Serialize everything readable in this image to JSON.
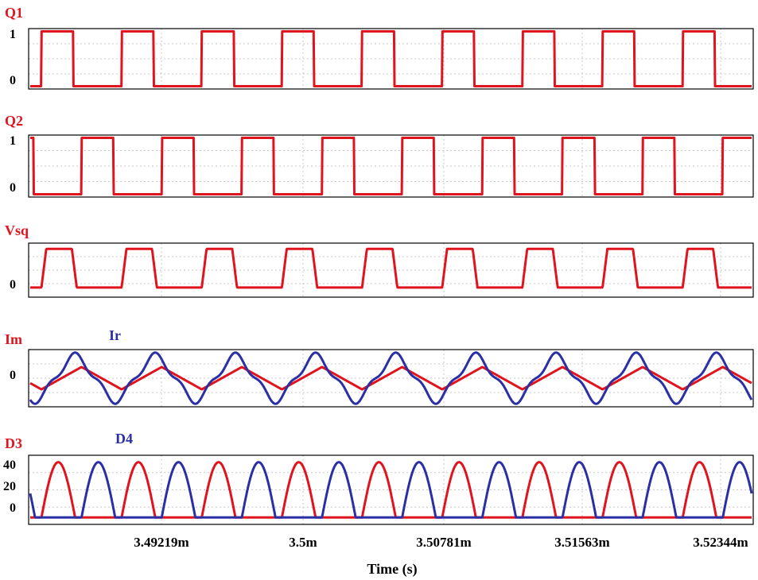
{
  "colors": {
    "red": "#e0141e",
    "blue": "#2b2fa6",
    "grid": "#c8c8c8",
    "frame": "#000000"
  },
  "x_axis": {
    "ticks": [
      "3.49219m",
      "3.5m",
      "3.50781m",
      "3.51563m",
      "3.52344m"
    ],
    "label": "Time (s)"
  },
  "chart_data": [
    {
      "type": "line",
      "series": [
        {
          "name": "Q1",
          "color": "#e0141e",
          "shape": "pulse",
          "periods": 9,
          "duty": 0.4,
          "phase": 0.14,
          "low": 0,
          "high": 1
        }
      ],
      "y_ticks": [
        "1",
        "0"
      ],
      "ylim": [
        -0.05,
        1.05
      ],
      "grid": true
    },
    {
      "type": "line",
      "series": [
        {
          "name": "Q2",
          "color": "#e0141e",
          "shape": "pulse",
          "periods": 9,
          "duty": 0.4,
          "phase": 0.64,
          "low": 0,
          "high": 1
        }
      ],
      "y_ticks": [
        "1",
        "0"
      ],
      "ylim": [
        -0.05,
        1.05
      ],
      "grid": true
    },
    {
      "type": "line",
      "series": [
        {
          "name": "Vsq",
          "color": "#e0141e",
          "shape": "trap",
          "periods": 9,
          "phase": 0.14,
          "low": 0,
          "high": 1
        }
      ],
      "y_ticks": [
        "0"
      ],
      "ylim": [
        -0.25,
        1.15
      ],
      "grid": true
    },
    {
      "type": "line",
      "series": [
        {
          "name": "Im",
          "color": "#e0141e",
          "shape": "triangle",
          "periods": 9,
          "phase": 0.14,
          "amp": 0.45
        },
        {
          "name": "Ir",
          "color": "#2b2fa6",
          "shape": "resonant",
          "periods": 9,
          "phase": 0.14,
          "amp": 1
        }
      ],
      "y_ticks": [
        "0"
      ],
      "ylim": [
        -1.15,
        1.15
      ],
      "grid": true
    },
    {
      "type": "line",
      "series": [
        {
          "name": "D3",
          "color": "#e0141e",
          "shape": "arcs",
          "periods": 9,
          "phase": 0.14,
          "peak": 40
        },
        {
          "name": "D4",
          "color": "#2b2fa6",
          "shape": "arcs",
          "periods": 9,
          "phase": 0.64,
          "peak": 40
        }
      ],
      "y_ticks": [
        "40",
        "20",
        "0"
      ],
      "ylim": [
        -5,
        45
      ],
      "grid": true
    }
  ]
}
